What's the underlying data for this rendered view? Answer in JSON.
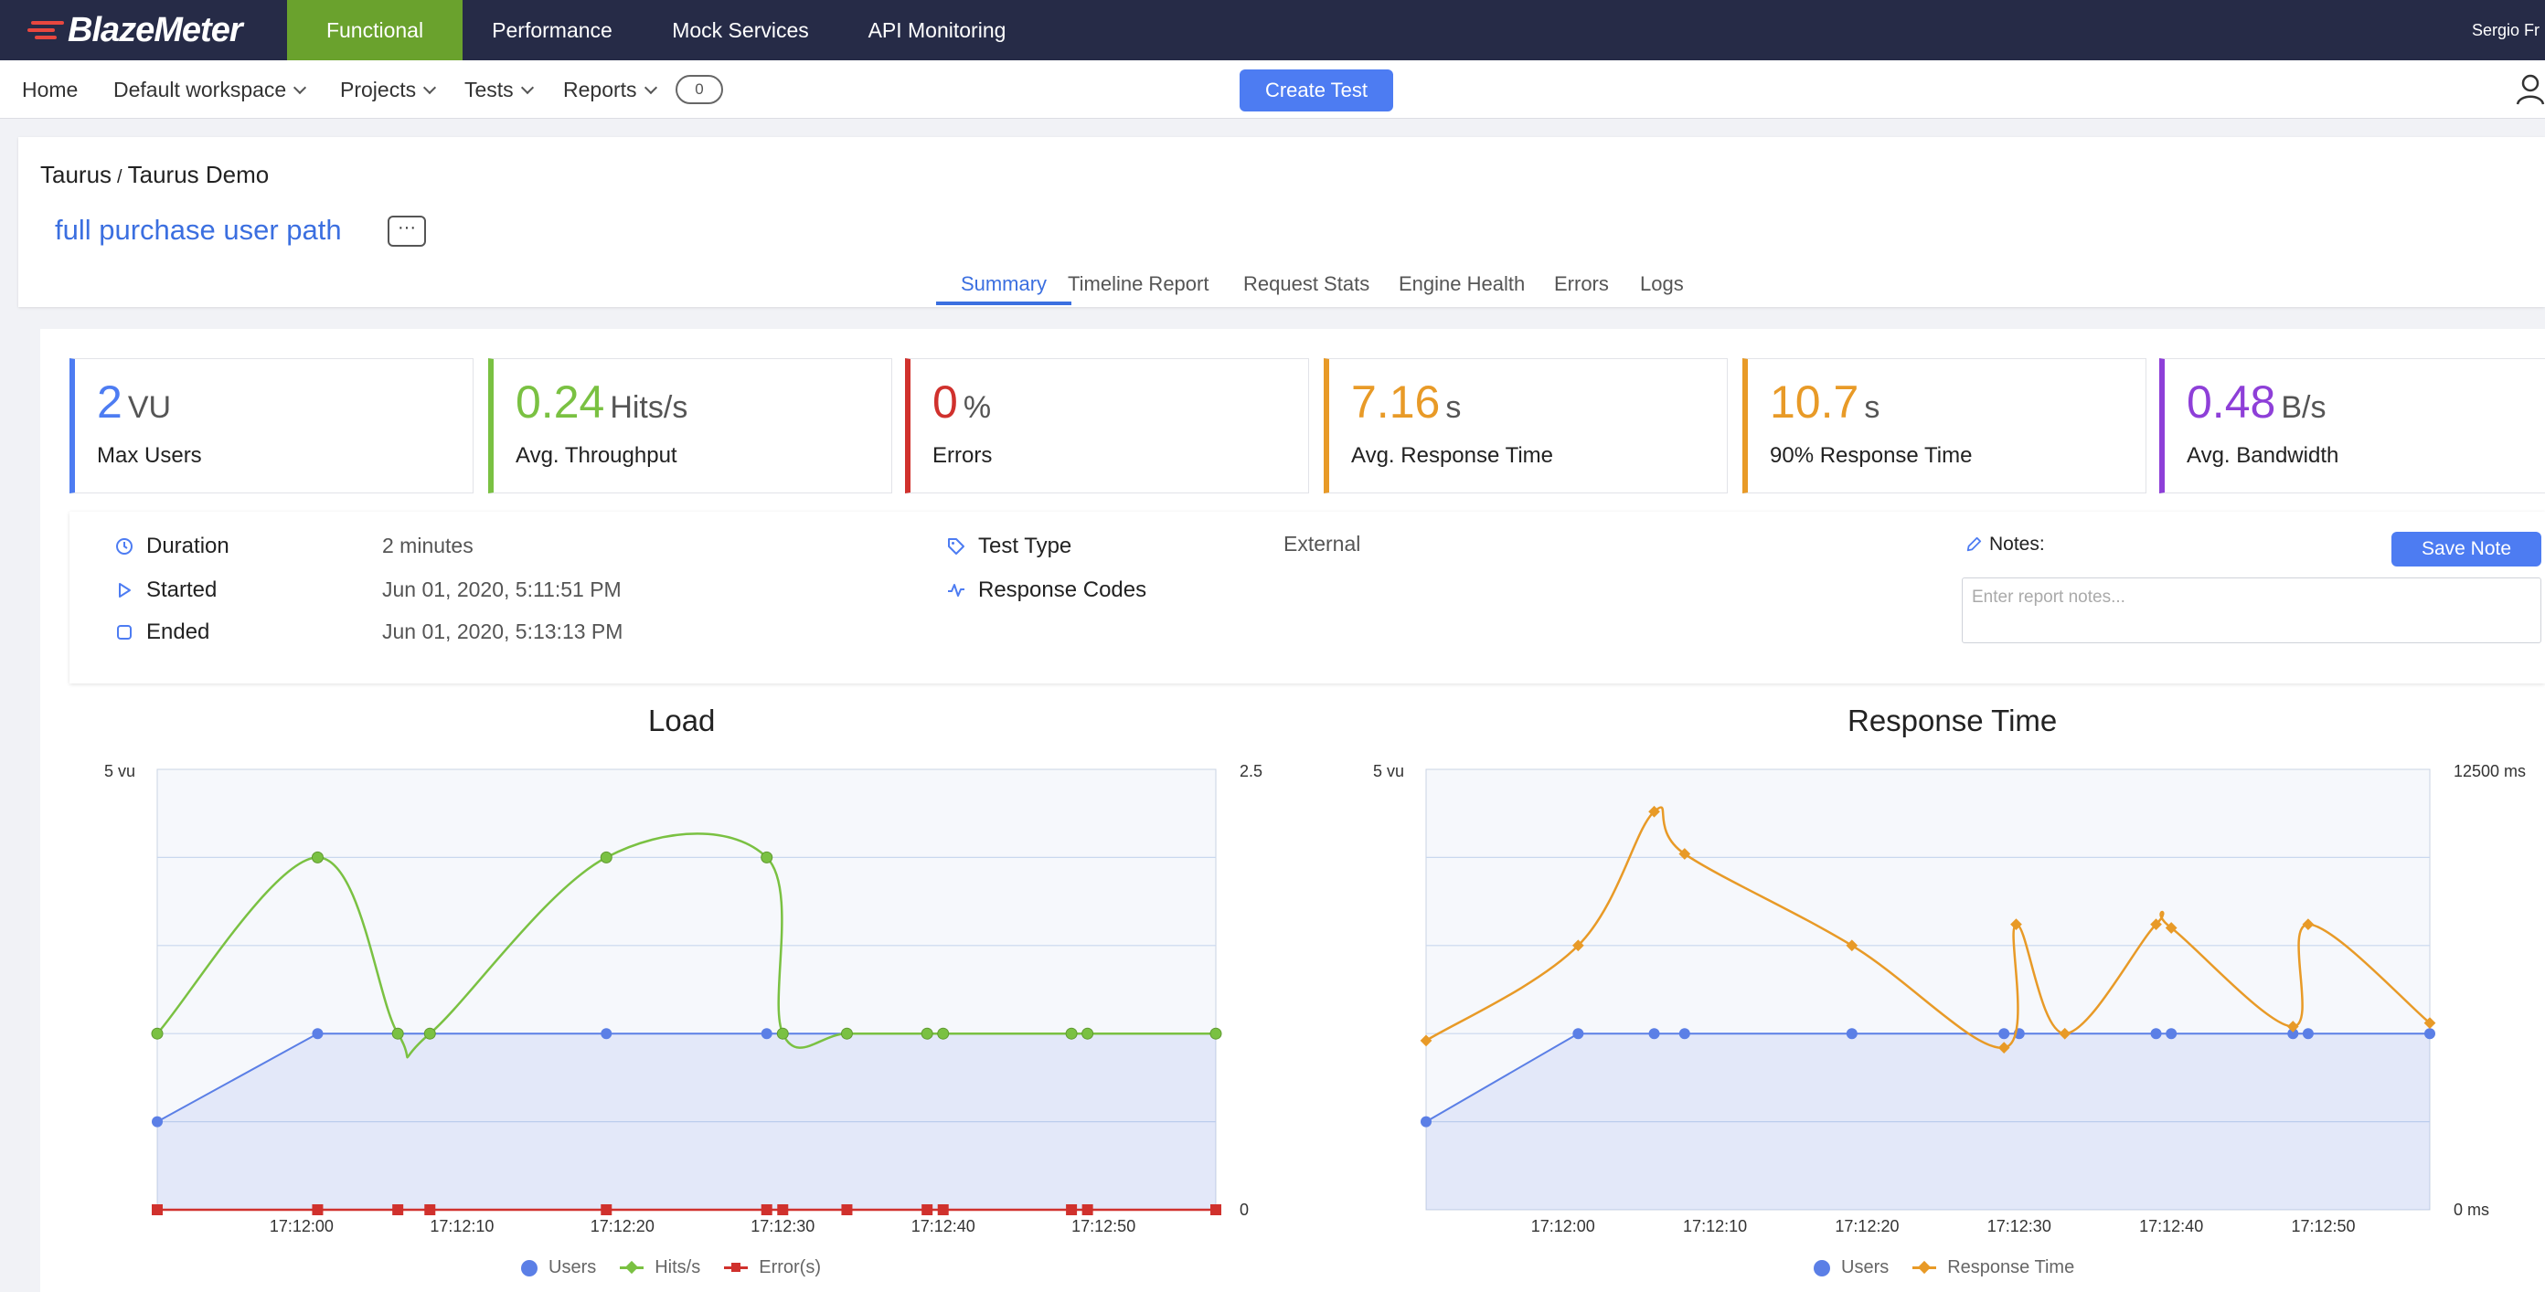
{
  "app": {
    "logo_text": "BlazeMeter",
    "user_name": "Sergio Fr"
  },
  "topnav": [
    {
      "label": "Functional",
      "active": true
    },
    {
      "label": "Performance",
      "active": false
    },
    {
      "label": "Mock Services",
      "active": false
    },
    {
      "label": "API Monitoring",
      "active": false
    }
  ],
  "subnav": {
    "home": "Home",
    "workspace": "Default workspace",
    "projects": "Projects",
    "tests": "Tests",
    "reports": "Reports",
    "reports_count": "0",
    "create_test": "Create Test"
  },
  "header": {
    "breadcrumb_project": "Taurus",
    "breadcrumb_sep": "/",
    "breadcrumb_test": "Taurus Demo",
    "report_title": "full purchase user path",
    "more_label": "···"
  },
  "tabs": [
    {
      "label": "Summary",
      "active": true
    },
    {
      "label": "Timeline Report",
      "active": false
    },
    {
      "label": "Request Stats",
      "active": false
    },
    {
      "label": "Engine Health",
      "active": false
    },
    {
      "label": "Errors",
      "active": false
    },
    {
      "label": "Logs",
      "active": false
    }
  ],
  "kpis": [
    {
      "value": "2",
      "unit": "VU",
      "label": "Max Users",
      "color": "#4d7cf2"
    },
    {
      "value": "0.24",
      "unit": "Hits/s",
      "label": "Avg. Throughput",
      "color": "#7ac142"
    },
    {
      "value": "0",
      "unit": "%",
      "label": "Errors",
      "color": "#d0312d"
    },
    {
      "value": "7.16",
      "unit": "s",
      "label": "Avg. Response Time",
      "color": "#e89a27"
    },
    {
      "value": "10.7",
      "unit": "s",
      "label": "90% Response Time",
      "color": "#e89a27"
    },
    {
      "value": "0.48",
      "unit": "B/s",
      "label": "Avg. Bandwidth",
      "color": "#8e3fd8"
    }
  ],
  "info": {
    "duration_label": "Duration",
    "duration_value": "2 minutes",
    "started_label": "Started",
    "started_value": "Jun 01, 2020, 5:11:51 PM",
    "ended_label": "Ended",
    "ended_value": "Jun 01, 2020, 5:13:13 PM",
    "test_type_label": "Test Type",
    "test_type_value": "External",
    "response_codes_label": "Response Codes",
    "notes_label": "Notes:",
    "notes_placeholder": "Enter report notes...",
    "save_note": "Save Note"
  },
  "colors": {
    "users": "#5b7fe6",
    "hits": "#7ac142",
    "errors": "#d0312d",
    "response_time": "#e89a27"
  },
  "chart_data": [
    {
      "type": "line",
      "title": "Load",
      "y_left_label": "5 vu",
      "y_left_range": [
        0,
        5
      ],
      "y_right_top_label": "2.5",
      "y_right_bottom_label": "0",
      "y_right_range": [
        0,
        2.5
      ],
      "x_ticks": [
        "17:12:00",
        "17:12:10",
        "17:12:20",
        "17:12:30",
        "17:12:40",
        "17:12:50"
      ],
      "x_range_seconds": [
        -9,
        57
      ],
      "legend": [
        "Users",
        "Hits/s",
        "Error(s)"
      ],
      "series": [
        {
          "name": "Users",
          "axis": "left",
          "area": true,
          "marker": "circle",
          "points": [
            [
              -9,
              1
            ],
            [
              1,
              2
            ],
            [
              6,
              2
            ],
            [
              8,
              2
            ],
            [
              19,
              2
            ],
            [
              29,
              2
            ],
            [
              30,
              2
            ],
            [
              34,
              2
            ],
            [
              39,
              2
            ],
            [
              40,
              2
            ],
            [
              48,
              2
            ],
            [
              49,
              2
            ],
            [
              57,
              2
            ]
          ]
        },
        {
          "name": "Hits/s",
          "axis": "right",
          "marker": "circle",
          "points": [
            [
              -9,
              1
            ],
            [
              1,
              2
            ],
            [
              6,
              1
            ],
            [
              8,
              1
            ],
            [
              19,
              2
            ],
            [
              29,
              2
            ],
            [
              30,
              1
            ],
            [
              34,
              1
            ],
            [
              39,
              1
            ],
            [
              40,
              1
            ],
            [
              48,
              1
            ],
            [
              49,
              1
            ],
            [
              57,
              1
            ]
          ]
        },
        {
          "name": "Error(s)",
          "axis": "right",
          "marker": "square",
          "points": [
            [
              -9,
              0
            ],
            [
              1,
              0
            ],
            [
              6,
              0
            ],
            [
              8,
              0
            ],
            [
              19,
              0
            ],
            [
              29,
              0
            ],
            [
              30,
              0
            ],
            [
              34,
              0
            ],
            [
              39,
              0
            ],
            [
              40,
              0
            ],
            [
              48,
              0
            ],
            [
              49,
              0
            ],
            [
              57,
              0
            ]
          ]
        }
      ]
    },
    {
      "type": "line",
      "title": "Response Time",
      "y_left_label": "5 vu",
      "y_left_range": [
        0,
        5
      ],
      "y_right_top_label": "12500 ms",
      "y_right_bottom_label": "0 ms",
      "y_right_range": [
        0,
        12500
      ],
      "x_ticks": [
        "17:12:00",
        "17:12:10",
        "17:12:20",
        "17:12:30",
        "17:12:40",
        "17:12:50"
      ],
      "x_range_seconds": [
        -9,
        57
      ],
      "legend": [
        "Users",
        "Response Time"
      ],
      "series": [
        {
          "name": "Users",
          "axis": "left",
          "area": true,
          "marker": "circle",
          "points": [
            [
              -9,
              1
            ],
            [
              1,
              2
            ],
            [
              6,
              2
            ],
            [
              8,
              2
            ],
            [
              19,
              2
            ],
            [
              29,
              2
            ],
            [
              30,
              2
            ],
            [
              39,
              2
            ],
            [
              40,
              2
            ],
            [
              48,
              2
            ],
            [
              49,
              2
            ],
            [
              57,
              2
            ]
          ]
        },
        {
          "name": "Response Time",
          "axis": "right",
          "marker": "diamond",
          "points": [
            [
              -9,
              4800
            ],
            [
              1,
              7500
            ],
            [
              6,
              11300
            ],
            [
              8,
              10100
            ],
            [
              19,
              7500
            ],
            [
              29,
              4600
            ],
            [
              29.8,
              8100
            ],
            [
              33,
              5000
            ],
            [
              39,
              8100
            ],
            [
              40,
              8000
            ],
            [
              48,
              5200
            ],
            [
              49,
              8100
            ],
            [
              57,
              5300
            ]
          ]
        }
      ]
    }
  ]
}
